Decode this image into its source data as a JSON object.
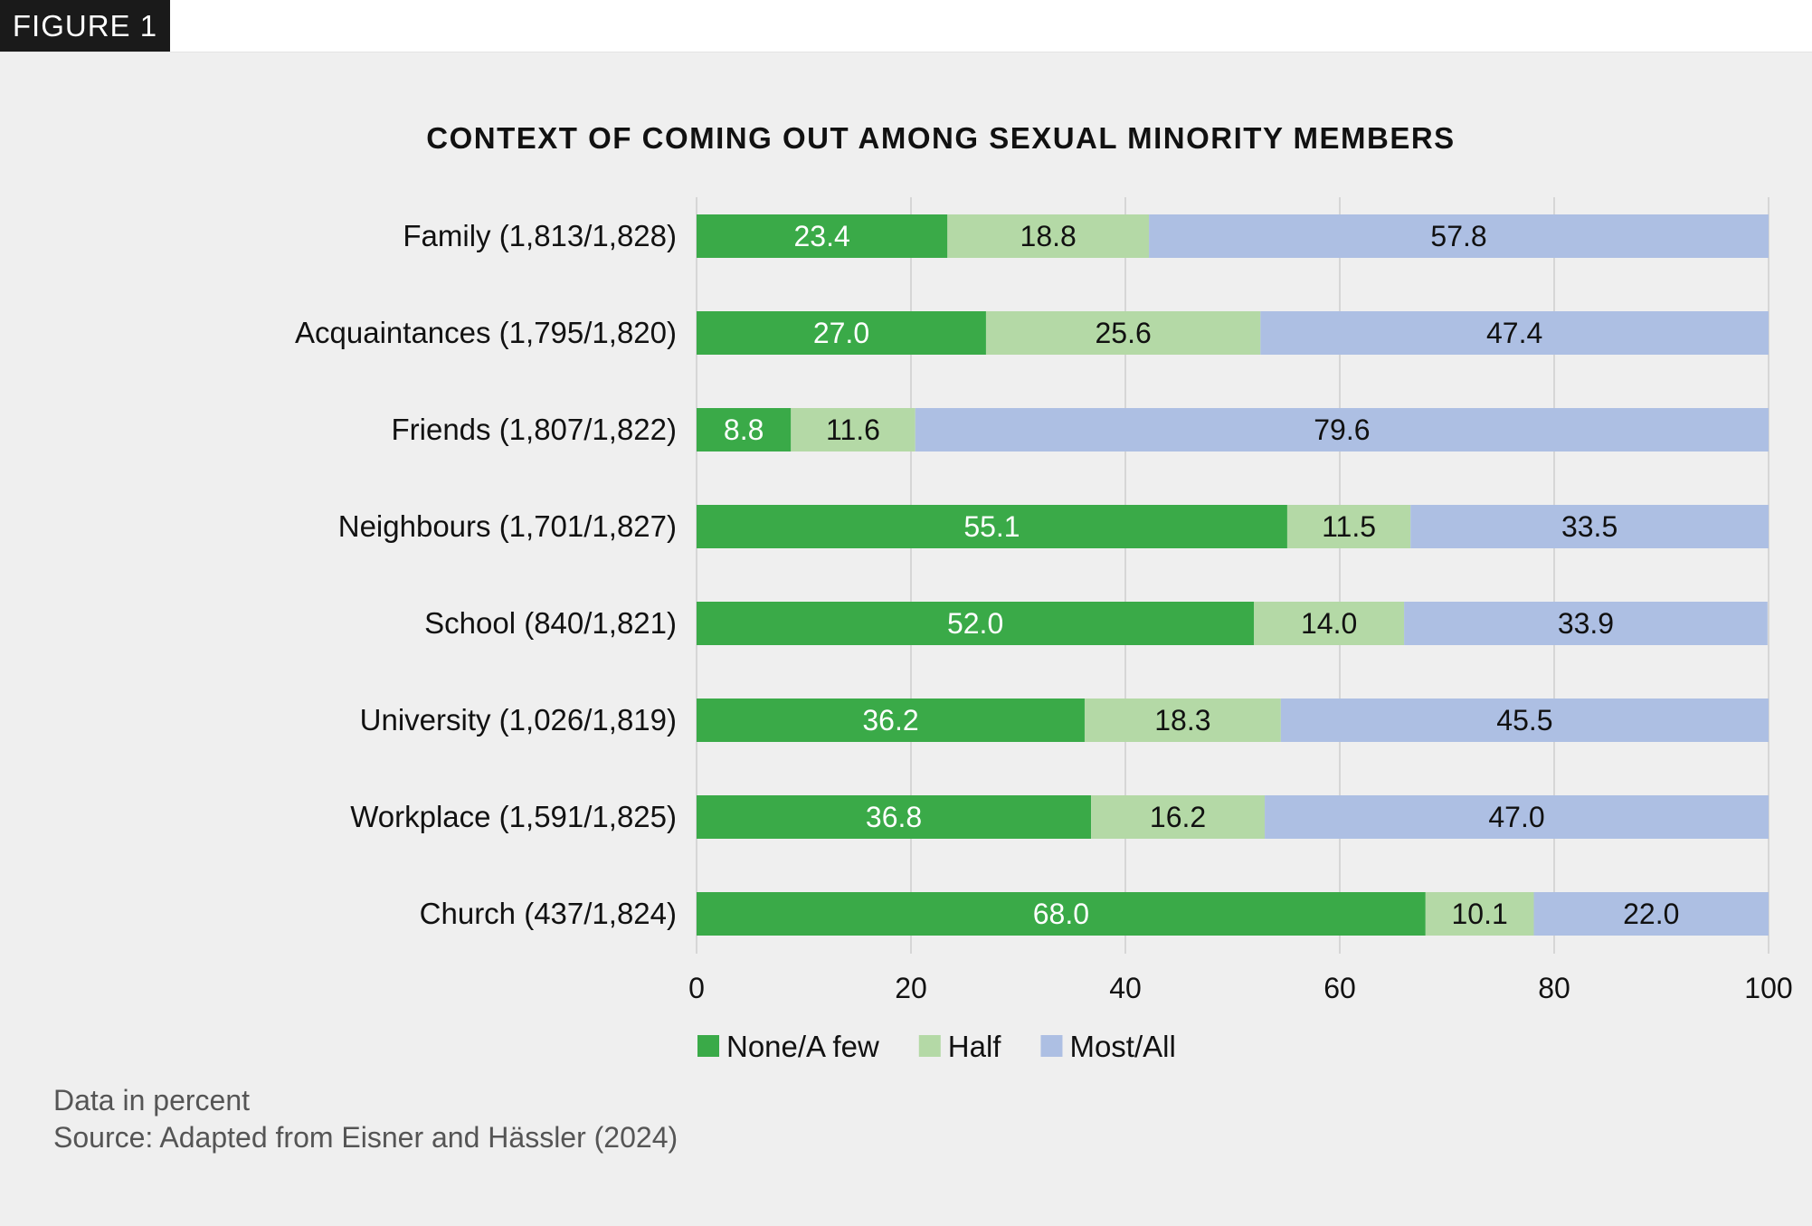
{
  "figure_label": "FIGURE 1",
  "notes": {
    "units": "Data in percent",
    "source": "Source: Adapted from Eisner and Hässler (2024)"
  },
  "chart_data": {
    "type": "bar",
    "orientation": "horizontal",
    "stacked": true,
    "title": "CONTEXT OF COMING OUT AMONG SEXUAL MINORITY MEMBERS",
    "categories": [
      "Family (1,813/1,828)",
      "Acquaintances (1,795/1,820)",
      "Friends (1,807/1,822)",
      "Neighbours (1,701/1,827)",
      "School (840/1,821)",
      "University (1,026/1,819)",
      "Workplace (1,591/1,825)",
      "Church (437/1,824)"
    ],
    "series": [
      {
        "name": "None/A few",
        "color": "#3aaa48",
        "label_color": "#ffffff",
        "values": [
          23.4,
          27.0,
          8.8,
          55.1,
          52.0,
          36.2,
          36.8,
          68.0
        ],
        "labels": [
          "23.4",
          "27.0",
          "8.8",
          "55.1",
          "52.0",
          "36.2",
          "36.8",
          "68.0"
        ]
      },
      {
        "name": "Half",
        "color": "#b4d9a6",
        "label_color": "#111111",
        "values": [
          18.8,
          25.6,
          11.6,
          11.5,
          14.0,
          18.3,
          16.2,
          10.1
        ],
        "labels": [
          "18.8",
          "25.6",
          "11.6",
          "11.5",
          "14.0",
          "18.3",
          "16.2",
          "10.1"
        ]
      },
      {
        "name": "Most/All",
        "color": "#adbfe3",
        "label_color": "#111111",
        "values": [
          57.8,
          47.4,
          79.6,
          33.5,
          33.9,
          45.5,
          47.0,
          22.0
        ],
        "labels": [
          "57.8",
          "47.4",
          "79.6",
          "33.5",
          "33.9",
          "45.5",
          "47.0",
          "22.0"
        ]
      }
    ],
    "xlim": [
      0,
      100
    ],
    "xticks": [
      "0",
      "20",
      "40",
      "60",
      "80",
      "100"
    ],
    "grid": true,
    "legend": "bottom"
  }
}
